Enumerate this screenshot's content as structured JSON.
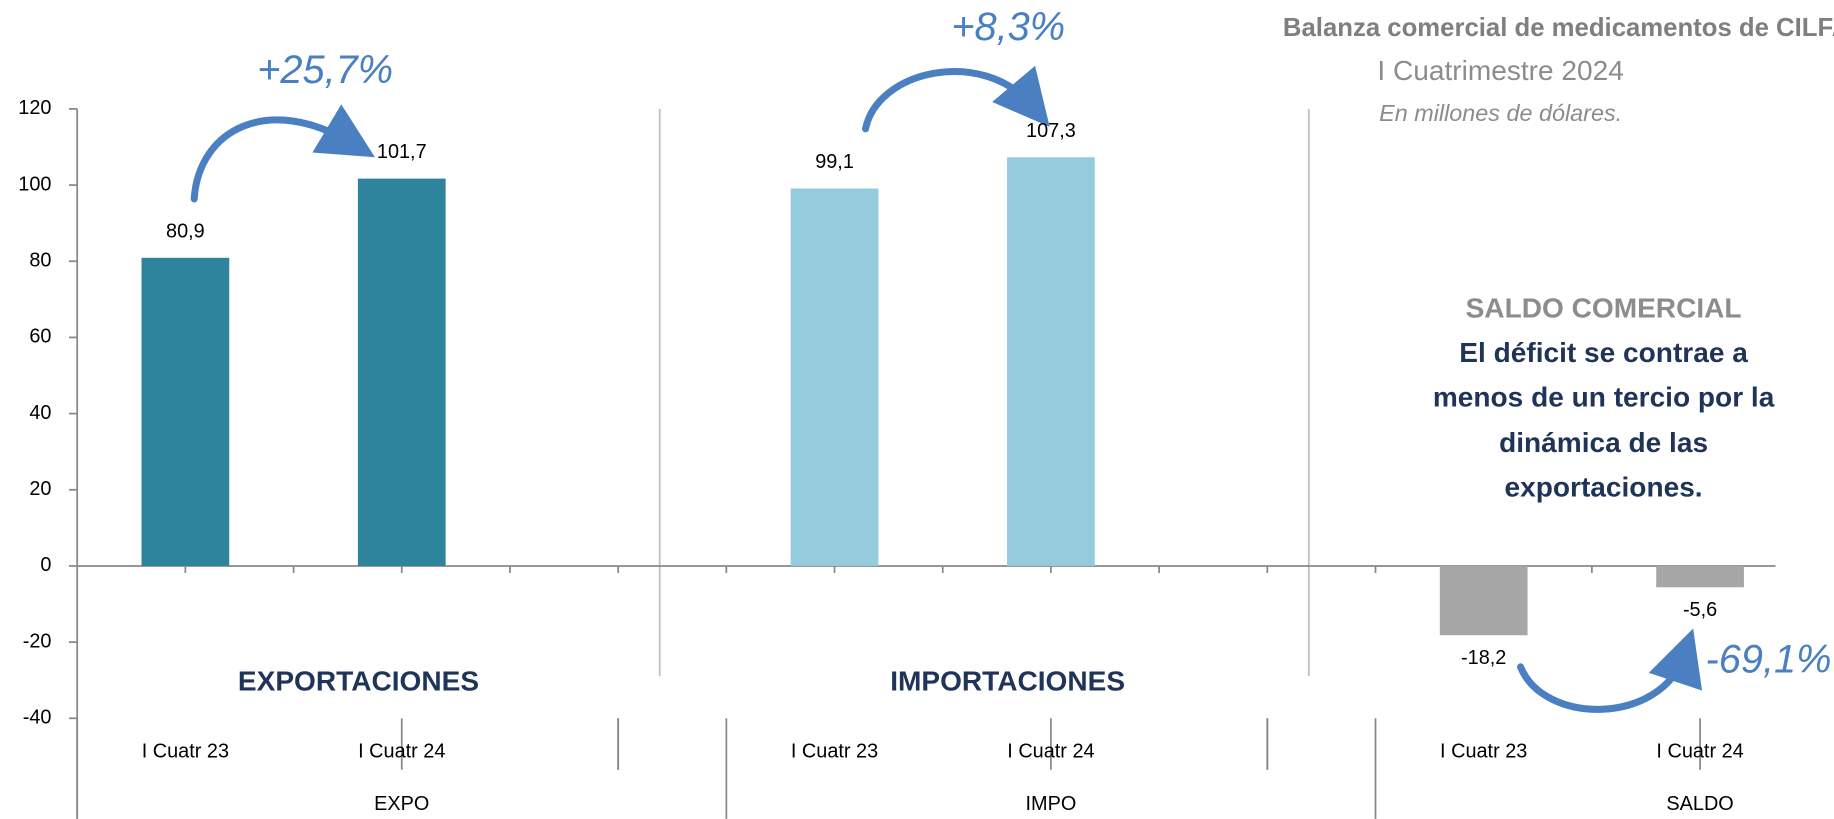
{
  "chart_data": {
    "type": "bar",
    "title": "Balanza comercial de medicamentos de CILFA",
    "subtitle": "I Cuatrimestre 2024",
    "note": "En millones de dólares.",
    "categories": [
      "I Cuatr 23",
      "I Cuatr 24",
      null,
      "I Cuatr 23",
      "I Cuatr 24",
      null,
      "I Cuatr 23",
      "I Cuatr 24"
    ],
    "values": [
      80.9,
      101.7,
      null,
      99.1,
      107.3,
      null,
      -18.2,
      -5.6
    ],
    "value_labels": [
      "80,9",
      "101,7",
      null,
      "99,1",
      "107,3",
      null,
      "-18,2",
      "-5,6"
    ],
    "groups": [
      {
        "name": "EXPO",
        "title": "EXPORTACIONES",
        "color": "#2e849d",
        "change": "+25,7%"
      },
      {
        "name": "IMPO",
        "title": "IMPORTACIONES",
        "color": "#94ccdd",
        "change": "+8,3%"
      },
      {
        "name": "SALDO",
        "color": "#a6a6a6",
        "change": "-69,1%"
      }
    ],
    "ylim": [
      -40,
      120
    ],
    "yticks": [
      -40,
      -20,
      0,
      20,
      40,
      60,
      80,
      100,
      120
    ],
    "box_title": "SALDO COMERCIAL",
    "box_text": [
      "El déficit se contrae a",
      "menos de un tercio por la",
      "dinámica de las",
      "exportaciones."
    ]
  }
}
